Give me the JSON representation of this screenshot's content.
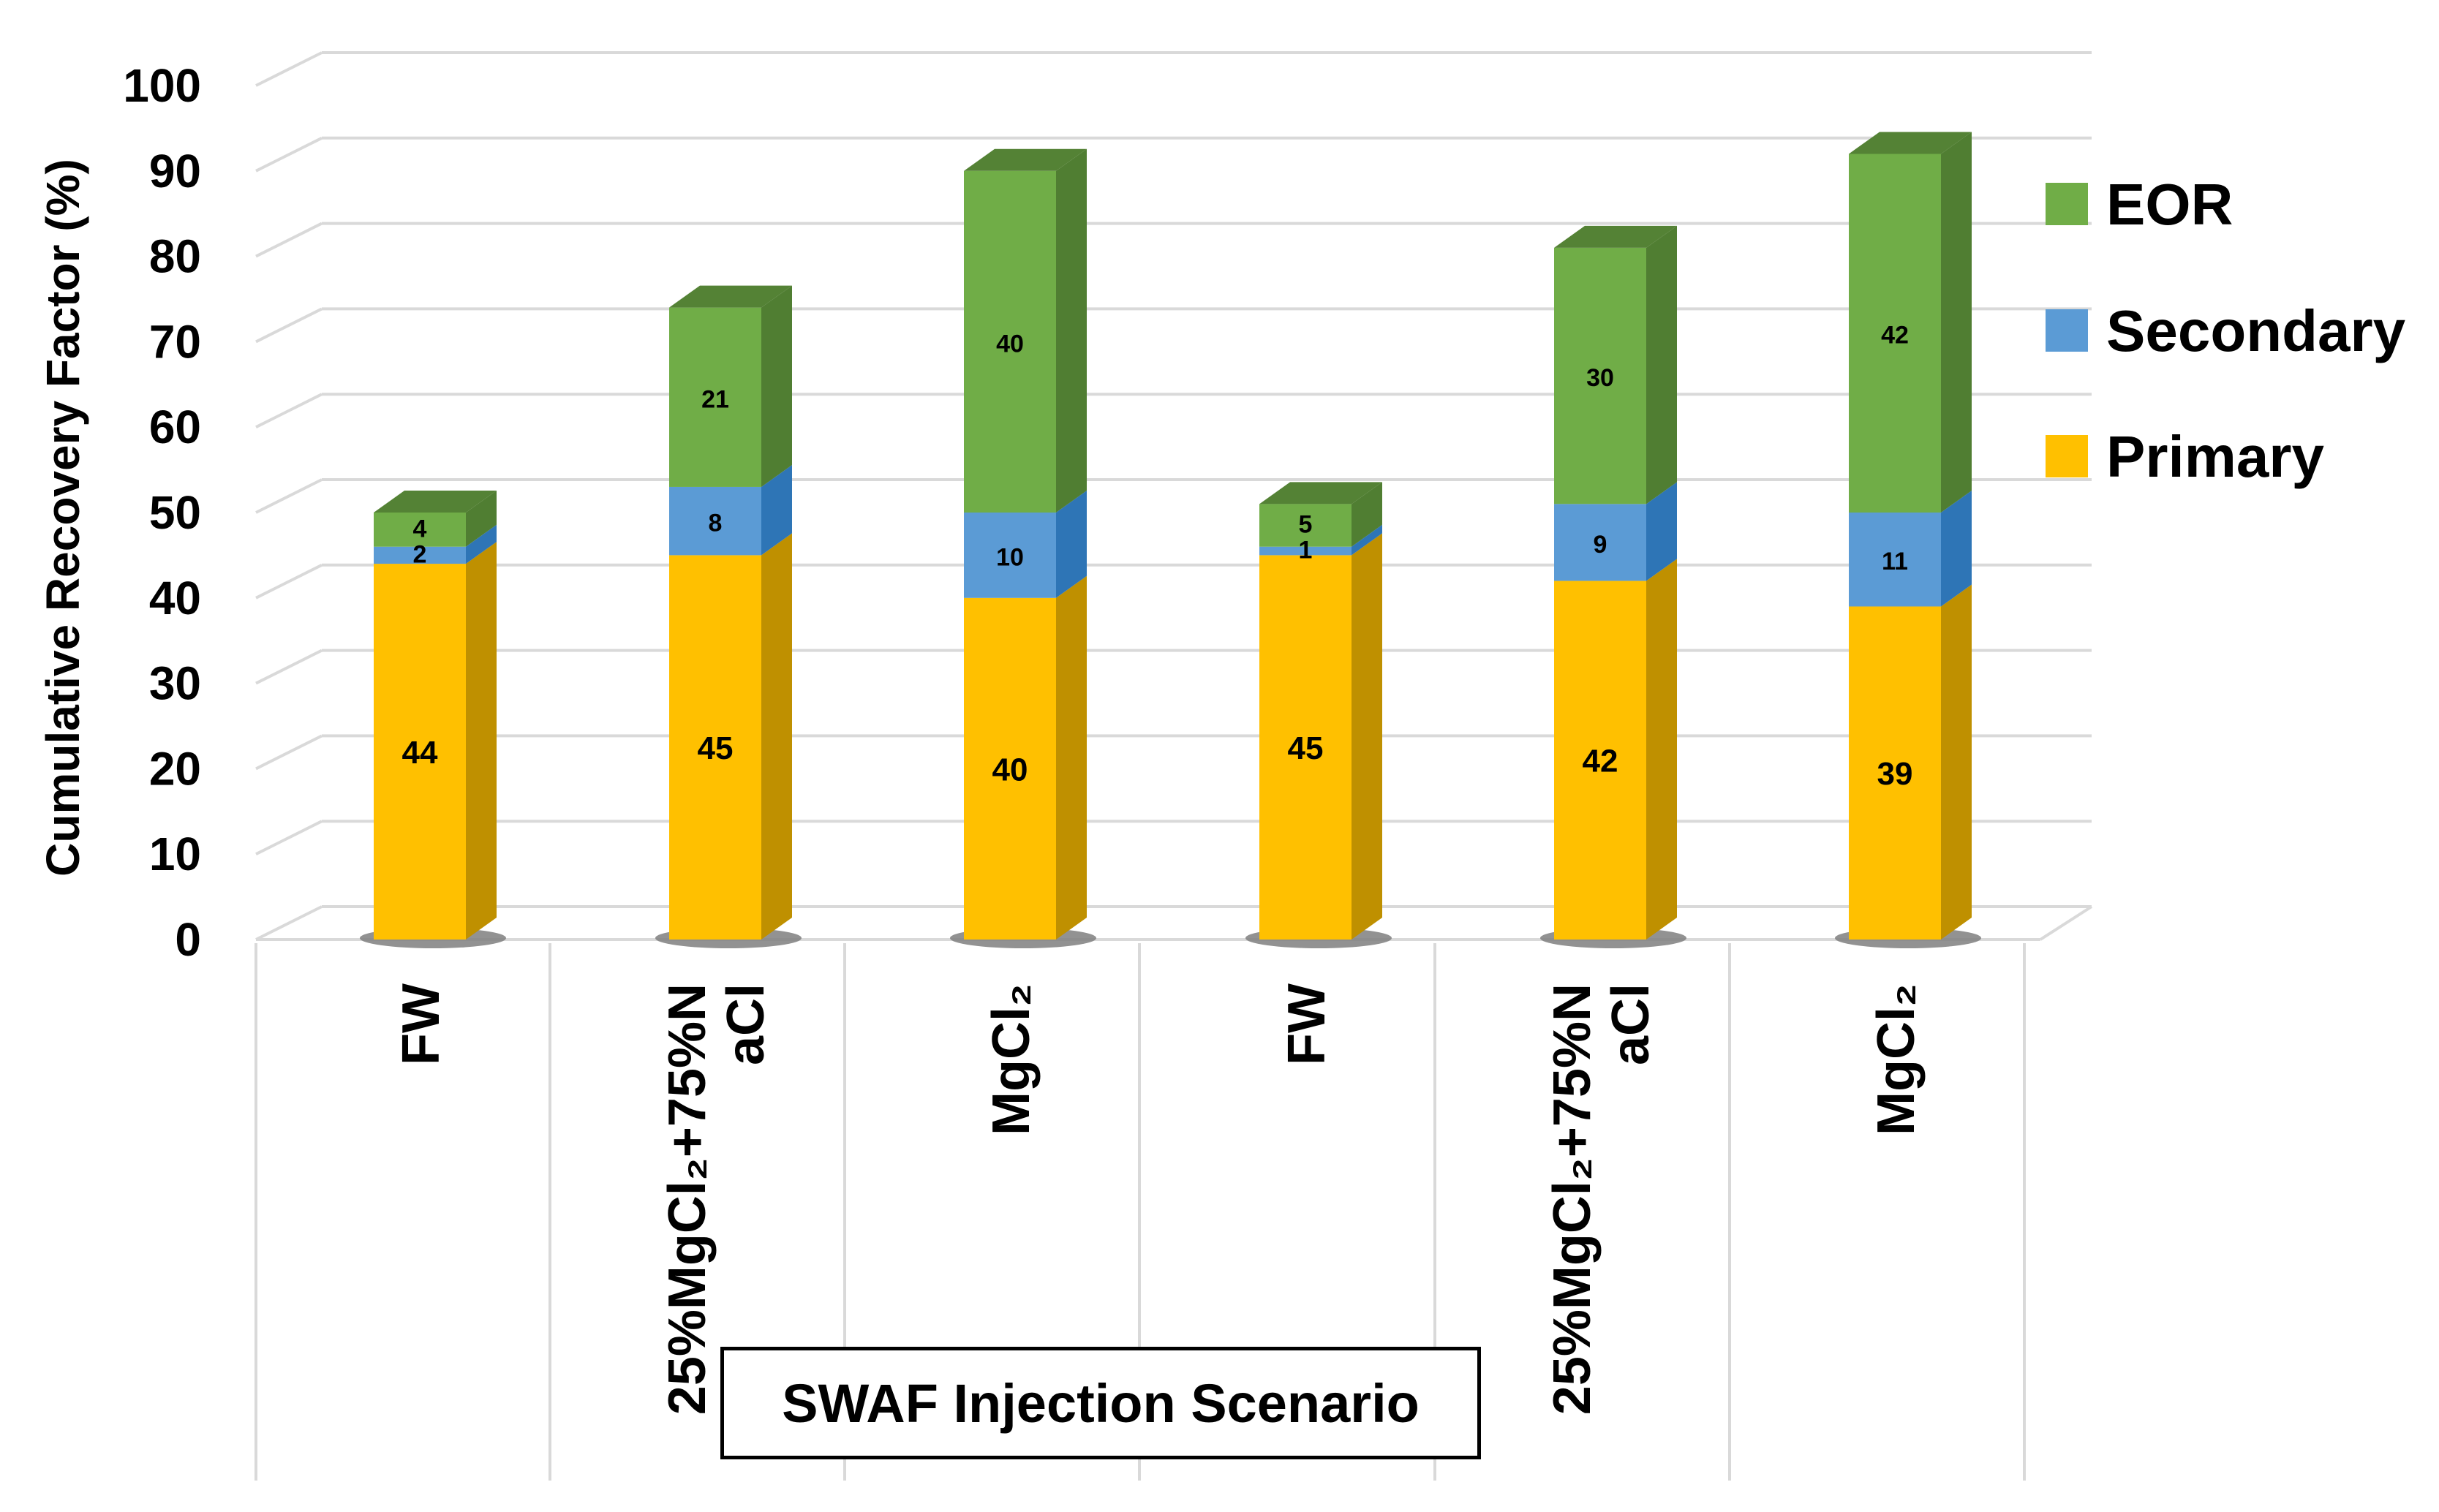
{
  "chart_data": {
    "type": "bar",
    "stacked": true,
    "ylabel": "Cumulative Recovery Factor (%)",
    "xlabel": "SWAF Injection Scenario",
    "ylim": [
      0,
      100
    ],
    "yticks": [
      0,
      10,
      20,
      30,
      40,
      50,
      60,
      70,
      80,
      90,
      100
    ],
    "yticks_text": [
      "0",
      "10",
      "20",
      "30",
      "40",
      "50",
      "60",
      "70",
      "80",
      "90",
      "100"
    ],
    "grid": true,
    "legend_position": "right",
    "categories": [
      [
        "FW"
      ],
      [
        "25%MgCl₂+75%N",
        "aCl"
      ],
      [
        "MgCl₂"
      ],
      [
        "FW"
      ],
      [
        "25%MgCl₂+75%N",
        "aCl"
      ],
      [
        "MgCl₂"
      ]
    ],
    "series": [
      {
        "name": "Primary",
        "color": "#FFC000",
        "values": [
          44,
          45,
          40,
          45,
          42,
          39
        ],
        "labels": [
          "44",
          "45",
          "40",
          "45",
          "42",
          "39"
        ]
      },
      {
        "name": "Secondary",
        "color": "#5B9BD5",
        "values": [
          2,
          8,
          10,
          1,
          9,
          11
        ],
        "labels": [
          "2",
          "8",
          "10",
          "1",
          "9",
          "11"
        ]
      },
      {
        "name": "EOR",
        "color": "#70AD47",
        "values": [
          4,
          21,
          40,
          5,
          30,
          42
        ],
        "labels": [
          "4",
          "21",
          "40",
          "5",
          "30",
          "42"
        ]
      }
    ],
    "legend_order": [
      "EOR",
      "Secondary",
      "Primary"
    ]
  },
  "colors": {
    "Primary_side": "#BF9000",
    "Primary_top": "#FFD966",
    "Secondary_side": "#2E75B6",
    "Secondary_top": "#9DC3E6",
    "EOR_side": "#507E32",
    "EOR_top": "#548235",
    "grid": "#D9D9D9",
    "shadow": "#7F7F7F"
  }
}
